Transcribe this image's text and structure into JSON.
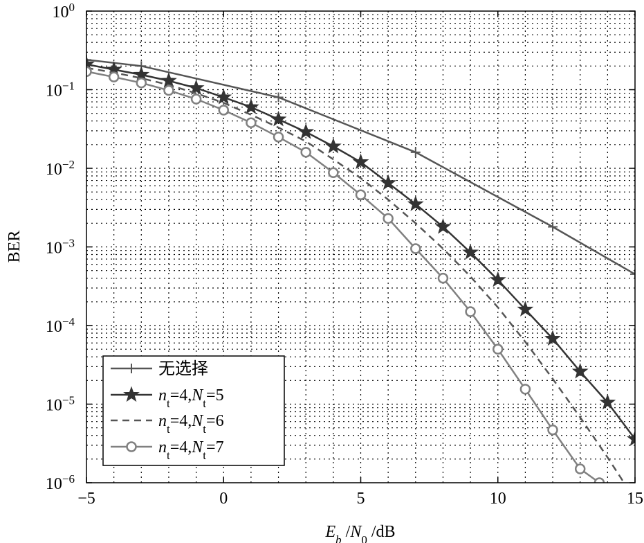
{
  "chart_data": {
    "type": "line",
    "title": "",
    "xlabel": {
      "E": "E",
      "b": "b",
      "slash1": " /",
      "N": "N",
      "zero": "0",
      "unit": " /dB"
    },
    "ylabel": "BER",
    "xlim": [
      -5,
      15
    ],
    "ylim": [
      1e-06,
      1
    ],
    "yscale": "log",
    "grid": true,
    "legend_position": "bottom-left",
    "x_ticks": [
      "−5",
      "0",
      "5",
      "10",
      "15"
    ],
    "x_tick_values": [
      -5,
      0,
      5,
      10,
      15
    ],
    "y_ticks": [
      {
        "base": "10",
        "exp": "0",
        "value": 1
      },
      {
        "base": "10",
        "exp": "−1",
        "value": 0.1
      },
      {
        "base": "10",
        "exp": "−2",
        "value": 0.01
      },
      {
        "base": "10",
        "exp": "−3",
        "value": 0.001
      },
      {
        "base": "10",
        "exp": "−4",
        "value": 0.0001
      },
      {
        "base": "10",
        "exp": "−5",
        "value": 1e-05
      },
      {
        "base": "10",
        "exp": "−6",
        "value": 1e-06
      }
    ],
    "series": [
      {
        "name": "无选择",
        "marker": "plus",
        "style": "solid",
        "color": "#555555",
        "x": [
          -5,
          -3,
          2,
          7,
          12,
          15
        ],
        "y": [
          0.24,
          0.2,
          0.08,
          0.016,
          0.0018,
          0.00045
        ]
      },
      {
        "name_parts": {
          "n": "n",
          "t1": "t",
          "eq1": "=4,",
          "N": "N",
          "t2": "t",
          "eq2": "=5"
        },
        "marker": "star",
        "style": "solid",
        "color": "#333333",
        "x": [
          -5,
          -4,
          -3,
          -2,
          -1,
          0,
          1,
          2,
          3,
          4,
          5,
          6,
          7,
          8,
          9,
          10,
          11,
          12,
          13,
          14,
          15
        ],
        "y": [
          0.21,
          0.18,
          0.155,
          0.13,
          0.105,
          0.08,
          0.06,
          0.042,
          0.029,
          0.019,
          0.012,
          0.0065,
          0.0035,
          0.0018,
          0.00085,
          0.00038,
          0.00016,
          6.8e-05,
          2.6e-05,
          1.05e-05,
          3.6e-06
        ]
      },
      {
        "name_parts": {
          "n": "n",
          "t1": "t",
          "eq1": "=4,",
          "N": "N",
          "t2": "t",
          "eq2": "=6"
        },
        "marker": "none",
        "style": "dashed",
        "color": "#555555",
        "x": [
          -5,
          -4,
          -3,
          -2,
          -1,
          0,
          1,
          2,
          3,
          4,
          5,
          6,
          7,
          8,
          9,
          10,
          11,
          12,
          13,
          14,
          14.6
        ],
        "y": [
          0.19,
          0.165,
          0.14,
          0.115,
          0.09,
          0.068,
          0.048,
          0.033,
          0.022,
          0.013,
          0.0075,
          0.004,
          0.002,
          0.00095,
          0.00042,
          0.00017,
          6.2e-05,
          2.1e-05,
          6.8e-06,
          2.1e-06,
          1e-06
        ]
      },
      {
        "name_parts": {
          "n": "n",
          "t1": "t",
          "eq1": "=4,",
          "N": "N",
          "t2": "t",
          "eq2": "=7"
        },
        "marker": "circle",
        "style": "solid",
        "color": "#808080",
        "x": [
          -5,
          -4,
          -3,
          -2,
          -1,
          0,
          1,
          2,
          3,
          4,
          5,
          6,
          7,
          8,
          9,
          10,
          11,
          12,
          13,
          13.7
        ],
        "y": [
          0.17,
          0.145,
          0.122,
          0.098,
          0.076,
          0.055,
          0.038,
          0.025,
          0.016,
          0.0088,
          0.0046,
          0.0023,
          0.00095,
          0.0004,
          0.00015,
          5e-05,
          1.55e-05,
          4.7e-06,
          1.5e-06,
          1e-06
        ]
      }
    ]
  }
}
